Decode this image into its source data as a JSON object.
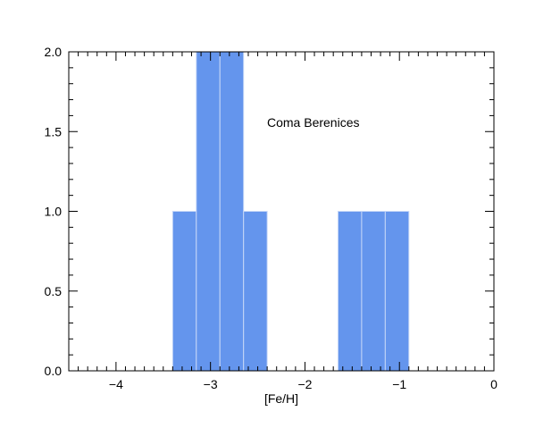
{
  "chart_data": {
    "type": "bar",
    "histogram": true,
    "bin_width": 0.25,
    "bins": [
      {
        "start": -3.4,
        "end": -3.15,
        "count": 1
      },
      {
        "start": -3.15,
        "end": -2.9,
        "count": 2
      },
      {
        "start": -2.9,
        "end": -2.65,
        "count": 2
      },
      {
        "start": -2.65,
        "end": -2.4,
        "count": 1
      },
      {
        "start": -1.65,
        "end": -1.4,
        "count": 1
      },
      {
        "start": -1.4,
        "end": -1.15,
        "count": 1
      },
      {
        "start": -1.15,
        "end": -0.9,
        "count": 1
      }
    ],
    "xlabel": "[Fe/H]",
    "ylabel": "",
    "xlim": [
      -4.5,
      0
    ],
    "ylim": [
      0,
      2.0
    ],
    "x_ticks": [
      -4,
      -3,
      -2,
      -1,
      0
    ],
    "x_tick_labels": [
      "−4",
      "−3",
      "−2",
      "−1",
      "0"
    ],
    "y_ticks": [
      0.0,
      0.5,
      1.0,
      1.5,
      2.0
    ],
    "y_tick_labels": [
      "0.0",
      "0.5",
      "1.0",
      "1.5",
      "2.0"
    ],
    "annotation": "Coma Berenices",
    "grid": false,
    "bar_color": "#6495ED",
    "bar_edge_color": "#c6d7f7"
  }
}
